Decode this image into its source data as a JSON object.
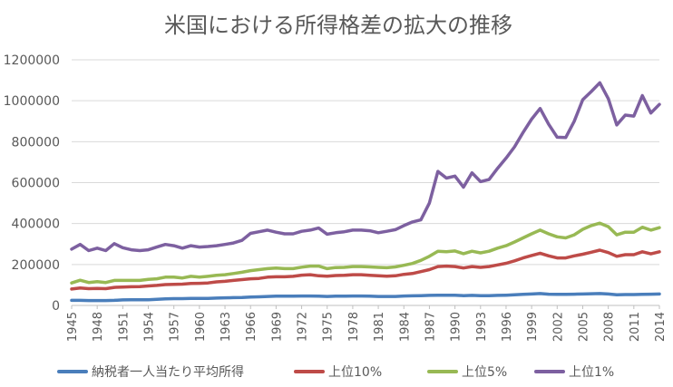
{
  "chart_data": {
    "type": "line",
    "title": "米国における所得格差の拡大の推移",
    "xlabel": "",
    "ylabel": "",
    "ylim": [
      0,
      1200000
    ],
    "yticks": [
      "0",
      "200000",
      "400000",
      "600000",
      "800000",
      "1000000",
      "1200000"
    ],
    "ytick_values": [
      0,
      200000,
      400000,
      600000,
      800000,
      1000000,
      1200000
    ],
    "x": [
      1945,
      1946,
      1947,
      1948,
      1949,
      1950,
      1951,
      1952,
      1953,
      1954,
      1955,
      1956,
      1957,
      1958,
      1959,
      1960,
      1961,
      1962,
      1963,
      1964,
      1965,
      1966,
      1967,
      1968,
      1969,
      1970,
      1971,
      1972,
      1973,
      1974,
      1975,
      1976,
      1977,
      1978,
      1979,
      1980,
      1981,
      1982,
      1983,
      1984,
      1985,
      1986,
      1987,
      1988,
      1989,
      1990,
      1991,
      1992,
      1993,
      1994,
      1995,
      1996,
      1997,
      1998,
      1999,
      2000,
      2001,
      2002,
      2003,
      2004,
      2005,
      2006,
      2007,
      2008,
      2009,
      2010,
      2011,
      2012,
      2013,
      2014
    ],
    "xtick_labels": [
      "1945",
      "1948",
      "1951",
      "1954",
      "1957",
      "1960",
      "1963",
      "1966",
      "1969",
      "1972",
      "1975",
      "1978",
      "1981",
      "1984",
      "1987",
      "1990",
      "1993",
      "1996",
      "1999",
      "2002",
      "2005",
      "2008",
      "2011",
      "2014"
    ],
    "grid": true,
    "legend_position": "bottom",
    "series": [
      {
        "name": "納税者一人当たり平均所得",
        "color": "#4a7ebb",
        "values": [
          25000,
          25000,
          24000,
          24000,
          24000,
          25000,
          27000,
          28000,
          28000,
          28000,
          30000,
          32000,
          33000,
          33000,
          34000,
          34000,
          34000,
          36000,
          37000,
          38000,
          39000,
          41000,
          42000,
          44000,
          45000,
          45000,
          45000,
          46000,
          46000,
          45000,
          44000,
          45000,
          45000,
          46000,
          46000,
          45000,
          44000,
          44000,
          44000,
          46000,
          47000,
          48000,
          49000,
          50000,
          50000,
          50000,
          48000,
          49000,
          48000,
          48000,
          49000,
          50000,
          52000,
          54000,
          56000,
          58000,
          55000,
          54000,
          54000,
          55000,
          56000,
          57000,
          58000,
          56000,
          52000,
          53000,
          53000,
          54000,
          55000,
          56000
        ]
      },
      {
        "name": "上位10%",
        "color": "#be4b48",
        "values": [
          80000,
          85000,
          82000,
          83000,
          82000,
          88000,
          90000,
          91000,
          92000,
          95000,
          98000,
          102000,
          103000,
          104000,
          107000,
          108000,
          110000,
          115000,
          118000,
          122000,
          126000,
          130000,
          132000,
          138000,
          140000,
          140000,
          142000,
          148000,
          150000,
          145000,
          143000,
          146000,
          147000,
          150000,
          150000,
          147000,
          145000,
          143000,
          145000,
          152000,
          156000,
          165000,
          175000,
          190000,
          192000,
          190000,
          183000,
          190000,
          186000,
          190000,
          198000,
          206000,
          218000,
          232000,
          244000,
          255000,
          242000,
          232000,
          232000,
          242000,
          250000,
          260000,
          270000,
          258000,
          240000,
          248000,
          248000,
          262000,
          252000,
          262000
        ]
      },
      {
        "name": "上位5%",
        "color": "#98b954",
        "values": [
          110000,
          123000,
          112000,
          116000,
          112000,
          122000,
          122000,
          122000,
          122000,
          127000,
          130000,
          138000,
          138000,
          134000,
          142000,
          138000,
          142000,
          147000,
          150000,
          156000,
          162000,
          170000,
          175000,
          180000,
          183000,
          180000,
          180000,
          187000,
          192000,
          192000,
          180000,
          185000,
          186000,
          190000,
          190000,
          188000,
          186000,
          184000,
          188000,
          196000,
          205000,
          220000,
          240000,
          265000,
          262000,
          266000,
          253000,
          265000,
          257000,
          265000,
          280000,
          292000,
          310000,
          330000,
          350000,
          368000,
          350000,
          335000,
          330000,
          345000,
          372000,
          390000,
          402000,
          385000,
          345000,
          358000,
          358000,
          382000,
          368000,
          380000
        ]
      },
      {
        "name": "上位1%",
        "color": "#7d60a0",
        "values": [
          275000,
          298000,
          268000,
          280000,
          268000,
          302000,
          282000,
          272000,
          268000,
          272000,
          285000,
          298000,
          292000,
          280000,
          292000,
          285000,
          288000,
          292000,
          298000,
          305000,
          318000,
          352000,
          360000,
          368000,
          358000,
          350000,
          350000,
          362000,
          368000,
          378000,
          348000,
          355000,
          360000,
          368000,
          368000,
          365000,
          355000,
          362000,
          370000,
          390000,
          408000,
          418000,
          500000,
          655000,
          622000,
          632000,
          578000,
          648000,
          605000,
          615000,
          670000,
          720000,
          775000,
          845000,
          910000,
          962000,
          885000,
          822000,
          820000,
          900000,
          1005000,
          1045000,
          1088000,
          1010000,
          882000,
          930000,
          925000,
          1025000,
          940000,
          982000
        ]
      }
    ]
  }
}
